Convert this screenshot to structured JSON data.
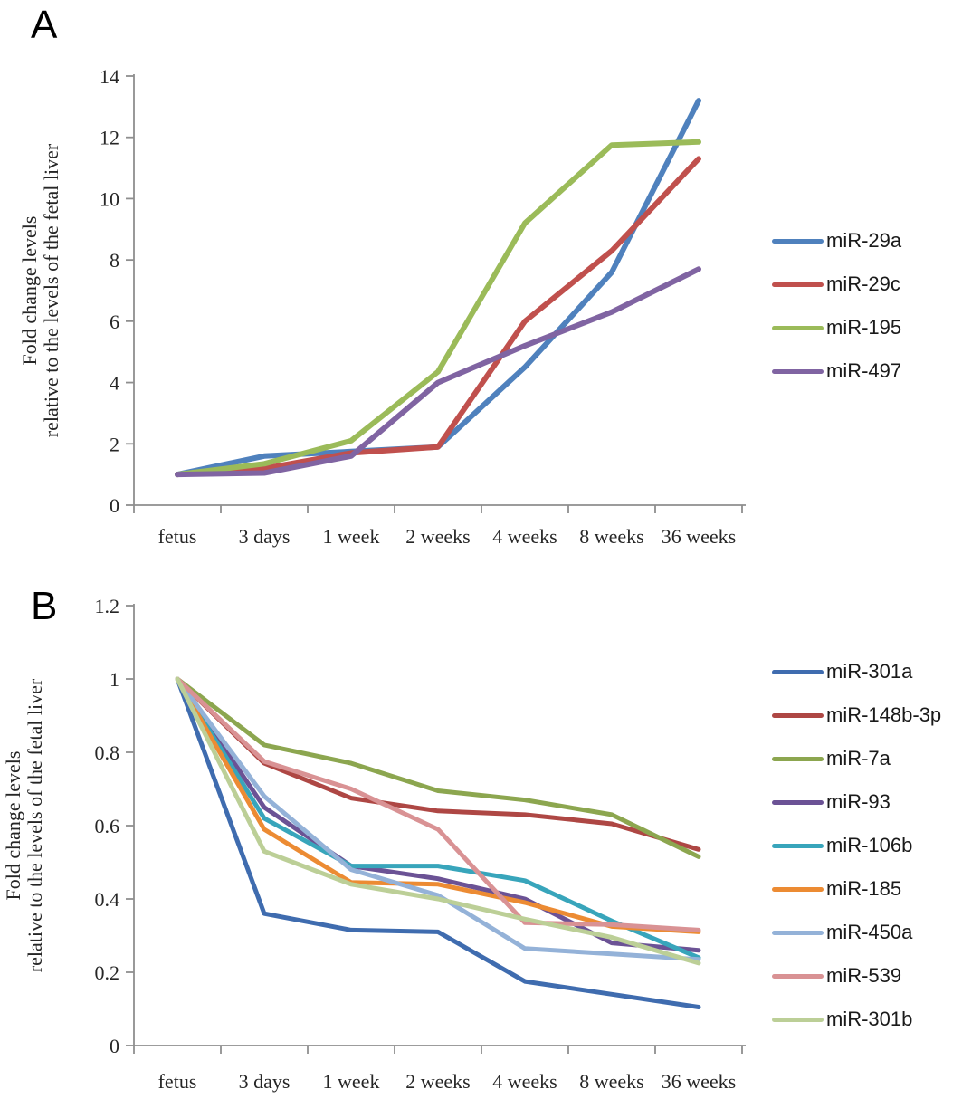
{
  "panels": [
    {
      "label": "A"
    },
    {
      "label": "B"
    }
  ],
  "chart_data": [
    {
      "type": "line",
      "title": "",
      "xlabel": "",
      "ylabel_lines": [
        "Fold change levels",
        "relative to the levels of the fetal liver"
      ],
      "categories": [
        "fetus",
        "3 days",
        "1 week",
        "2 weeks",
        "4 weeks",
        "8 weeks",
        "36 weeks"
      ],
      "ylim": [
        0,
        14
      ],
      "yticks": [
        0,
        2,
        4,
        6,
        8,
        10,
        12,
        14
      ],
      "ytick_labels": [
        "0",
        "2",
        "4",
        "6",
        "8",
        "10",
        "12",
        "14"
      ],
      "grid": false,
      "legend_position": "right",
      "axis_color": "#8e8e8e",
      "series": [
        {
          "name": "miR-29a",
          "color": "#4F81BD",
          "values": [
            1.0,
            1.6,
            1.75,
            1.9,
            4.5,
            7.6,
            13.2
          ]
        },
        {
          "name": "miR-29c",
          "color": "#C0504D",
          "values": [
            1.0,
            1.2,
            1.7,
            1.9,
            6.0,
            8.3,
            11.3
          ]
        },
        {
          "name": "miR-195",
          "color": "#9BBB59",
          "values": [
            1.0,
            1.35,
            2.1,
            4.35,
            9.2,
            11.75,
            11.85
          ]
        },
        {
          "name": "miR-497",
          "color": "#8064A2",
          "values": [
            1.0,
            1.05,
            1.6,
            4.0,
            5.2,
            6.3,
            7.7
          ]
        }
      ]
    },
    {
      "type": "line",
      "title": "",
      "xlabel": "",
      "ylabel_lines": [
        "Fold change levels",
        "relative to the levels of the fetal liver"
      ],
      "categories": [
        "fetus",
        "3 days",
        "1 week",
        "2 weeks",
        "4 weeks",
        "8 weeks",
        "36 weeks"
      ],
      "ylim": [
        0,
        1.2
      ],
      "yticks": [
        0,
        0.2,
        0.4,
        0.6,
        0.8,
        1,
        1.2
      ],
      "ytick_labels": [
        "0",
        "0.2",
        "0.4",
        "0.6",
        "0.8",
        "1",
        "1.2"
      ],
      "grid": false,
      "legend_position": "right",
      "axis_color": "#8e8e8e",
      "series": [
        {
          "name": "miR-301a",
          "color": "#3F6CAF",
          "values": [
            1.0,
            0.36,
            0.315,
            0.31,
            0.175,
            0.14,
            0.105
          ]
        },
        {
          "name": "miR-148b-3p",
          "color": "#AE4744",
          "values": [
            1.0,
            0.77,
            0.675,
            0.64,
            0.63,
            0.605,
            0.535
          ]
        },
        {
          "name": "miR-7a",
          "color": "#8CA64F",
          "values": [
            1.0,
            0.82,
            0.77,
            0.695,
            0.67,
            0.63,
            0.515
          ]
        },
        {
          "name": "miR-93",
          "color": "#6B5295",
          "values": [
            1.0,
            0.65,
            0.49,
            0.455,
            0.4,
            0.28,
            0.26
          ]
        },
        {
          "name": "miR-106b",
          "color": "#38A5BB",
          "values": [
            1.0,
            0.62,
            0.49,
            0.49,
            0.45,
            0.34,
            0.24
          ]
        },
        {
          "name": "miR-185",
          "color": "#EC8B33",
          "values": [
            1.0,
            0.59,
            0.445,
            0.44,
            0.39,
            0.325,
            0.31
          ]
        },
        {
          "name": "miR-450a",
          "color": "#94B2D8",
          "values": [
            1.0,
            0.68,
            0.48,
            0.41,
            0.265,
            0.25,
            0.235
          ]
        },
        {
          "name": "miR-539",
          "color": "#D99294",
          "values": [
            1.0,
            0.775,
            0.7,
            0.59,
            0.335,
            0.33,
            0.315
          ]
        },
        {
          "name": "miR-301b",
          "color": "#BCCF97",
          "values": [
            1.0,
            0.53,
            0.44,
            0.4,
            0.345,
            0.295,
            0.225
          ]
        }
      ]
    }
  ]
}
